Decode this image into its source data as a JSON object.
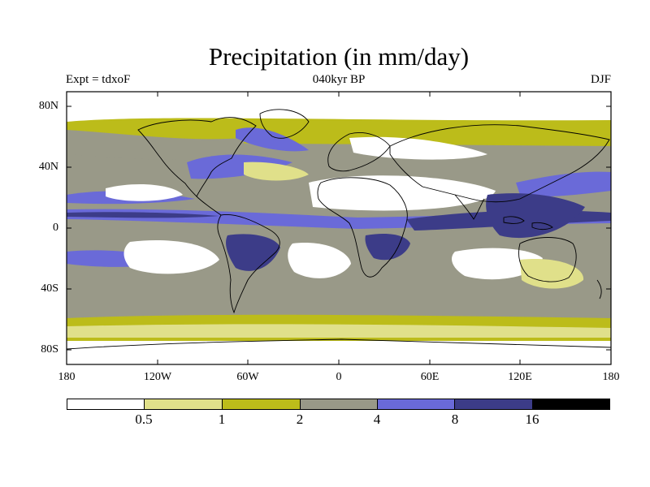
{
  "title": "Precipitation (in mm/day)",
  "experiment_label": "Expt = tdxoF",
  "period_label": "040kyr BP",
  "season_label": "DJF",
  "lat_ticks": [
    "80N",
    "40N",
    "0",
    "40S",
    "80S"
  ],
  "lon_ticks": [
    "180",
    "120W",
    "60W",
    "0",
    "60E",
    "120E",
    "180"
  ],
  "colorbar": {
    "colors": [
      "#ffffff",
      "#e0e08a",
      "#bcbc1a",
      "#999988",
      "#6a6ad8",
      "#3c3c88",
      "#000000"
    ],
    "labels": [
      "0.5",
      "1",
      "2",
      "4",
      "8",
      "16"
    ]
  }
}
